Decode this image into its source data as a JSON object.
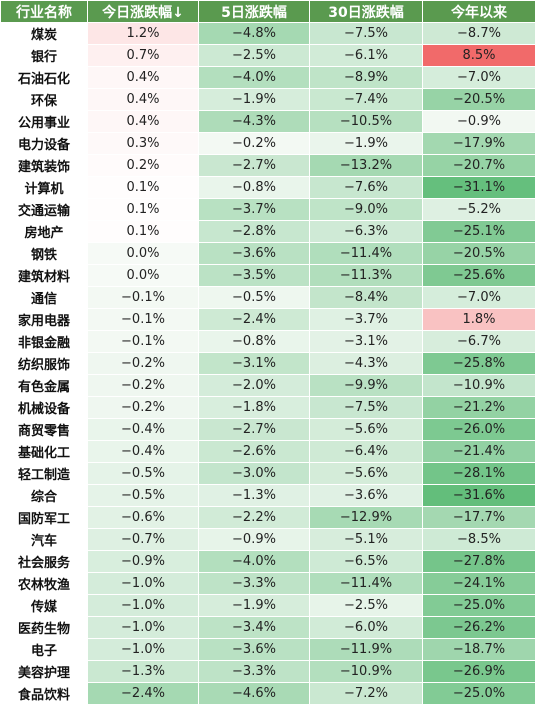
{
  "headers": [
    "行业名称",
    "今日涨跌幅↓",
    "5日涨跌幅",
    "30日涨跌幅",
    "今年以来"
  ],
  "rows": [
    {
      "name": "煤炭",
      "d1": "1.2%",
      "d5": "−4.8%",
      "d30": "−7.5%",
      "ytd": "−8.7%"
    },
    {
      "name": "银行",
      "d1": "0.7%",
      "d5": "−2.5%",
      "d30": "−6.1%",
      "ytd": "8.5%"
    },
    {
      "name": "石油石化",
      "d1": "0.4%",
      "d5": "−4.0%",
      "d30": "−8.9%",
      "ytd": "−7.0%"
    },
    {
      "name": "环保",
      "d1": "0.4%",
      "d5": "−1.9%",
      "d30": "−7.4%",
      "ytd": "−20.5%"
    },
    {
      "name": "公用事业",
      "d1": "0.4%",
      "d5": "−4.3%",
      "d30": "−10.5%",
      "ytd": "−0.9%"
    },
    {
      "name": "电力设备",
      "d1": "0.3%",
      "d5": "−0.2%",
      "d30": "−1.9%",
      "ytd": "−17.9%"
    },
    {
      "name": "建筑装饰",
      "d1": "0.2%",
      "d5": "−2.7%",
      "d30": "−13.2%",
      "ytd": "−20.7%"
    },
    {
      "name": "计算机",
      "d1": "0.1%",
      "d5": "−0.8%",
      "d30": "−7.6%",
      "ytd": "−31.1%"
    },
    {
      "name": "交通运输",
      "d1": "0.1%",
      "d5": "−3.7%",
      "d30": "−9.0%",
      "ytd": "−5.2%"
    },
    {
      "name": "房地产",
      "d1": "0.1%",
      "d5": "−2.8%",
      "d30": "−6.3%",
      "ytd": "−25.1%"
    },
    {
      "name": "钢铁",
      "d1": "0.0%",
      "d5": "−3.6%",
      "d30": "−11.4%",
      "ytd": "−20.5%"
    },
    {
      "name": "建筑材料",
      "d1": "0.0%",
      "d5": "−3.5%",
      "d30": "−11.3%",
      "ytd": "−25.6%"
    },
    {
      "name": "通信",
      "d1": "−0.1%",
      "d5": "−0.5%",
      "d30": "−8.4%",
      "ytd": "−7.0%"
    },
    {
      "name": "家用电器",
      "d1": "−0.1%",
      "d5": "−2.4%",
      "d30": "−3.7%",
      "ytd": "1.8%"
    },
    {
      "name": "非银金融",
      "d1": "−0.1%",
      "d5": "−0.8%",
      "d30": "−3.1%",
      "ytd": "−6.7%"
    },
    {
      "name": "纺织服饰",
      "d1": "−0.2%",
      "d5": "−3.1%",
      "d30": "−4.3%",
      "ytd": "−25.8%"
    },
    {
      "name": "有色金属",
      "d1": "−0.2%",
      "d5": "−2.0%",
      "d30": "−9.9%",
      "ytd": "−10.9%"
    },
    {
      "name": "机械设备",
      "d1": "−0.2%",
      "d5": "−1.8%",
      "d30": "−7.5%",
      "ytd": "−21.2%"
    },
    {
      "name": "商贸零售",
      "d1": "−0.4%",
      "d5": "−2.7%",
      "d30": "−5.6%",
      "ytd": "−26.0%"
    },
    {
      "name": "基础化工",
      "d1": "−0.4%",
      "d5": "−2.6%",
      "d30": "−6.4%",
      "ytd": "−21.4%"
    },
    {
      "name": "轻工制造",
      "d1": "−0.5%",
      "d5": "−3.0%",
      "d30": "−5.6%",
      "ytd": "−28.1%"
    },
    {
      "name": "综合",
      "d1": "−0.5%",
      "d5": "−1.3%",
      "d30": "−3.6%",
      "ytd": "−31.6%"
    },
    {
      "name": "国防军工",
      "d1": "−0.6%",
      "d5": "−2.2%",
      "d30": "−12.9%",
      "ytd": "−17.7%"
    },
    {
      "name": "汽车",
      "d1": "−0.7%",
      "d5": "−0.9%",
      "d30": "−5.1%",
      "ytd": "−8.5%"
    },
    {
      "name": "社会服务",
      "d1": "−0.9%",
      "d5": "−4.0%",
      "d30": "−6.5%",
      "ytd": "−27.8%"
    },
    {
      "name": "农林牧渔",
      "d1": "−1.0%",
      "d5": "−3.3%",
      "d30": "−11.4%",
      "ytd": "−24.1%"
    },
    {
      "name": "传媒",
      "d1": "−1.0%",
      "d5": "−1.9%",
      "d30": "−2.5%",
      "ytd": "−25.0%"
    },
    {
      "name": "医药生物",
      "d1": "−1.0%",
      "d5": "−3.4%",
      "d30": "−6.0%",
      "ytd": "−26.2%"
    },
    {
      "name": "电子",
      "d1": "−1.0%",
      "d5": "−3.6%",
      "d30": "−11.9%",
      "ytd": "−18.7%"
    },
    {
      "name": "美容护理",
      "d1": "−1.3%",
      "d5": "−3.3%",
      "d30": "−10.9%",
      "ytd": "−26.9%"
    },
    {
      "name": "食品饮料",
      "d1": "−2.4%",
      "d5": "−4.6%",
      "d30": "−7.2%",
      "ytd": "−25.0%"
    }
  ]
}
